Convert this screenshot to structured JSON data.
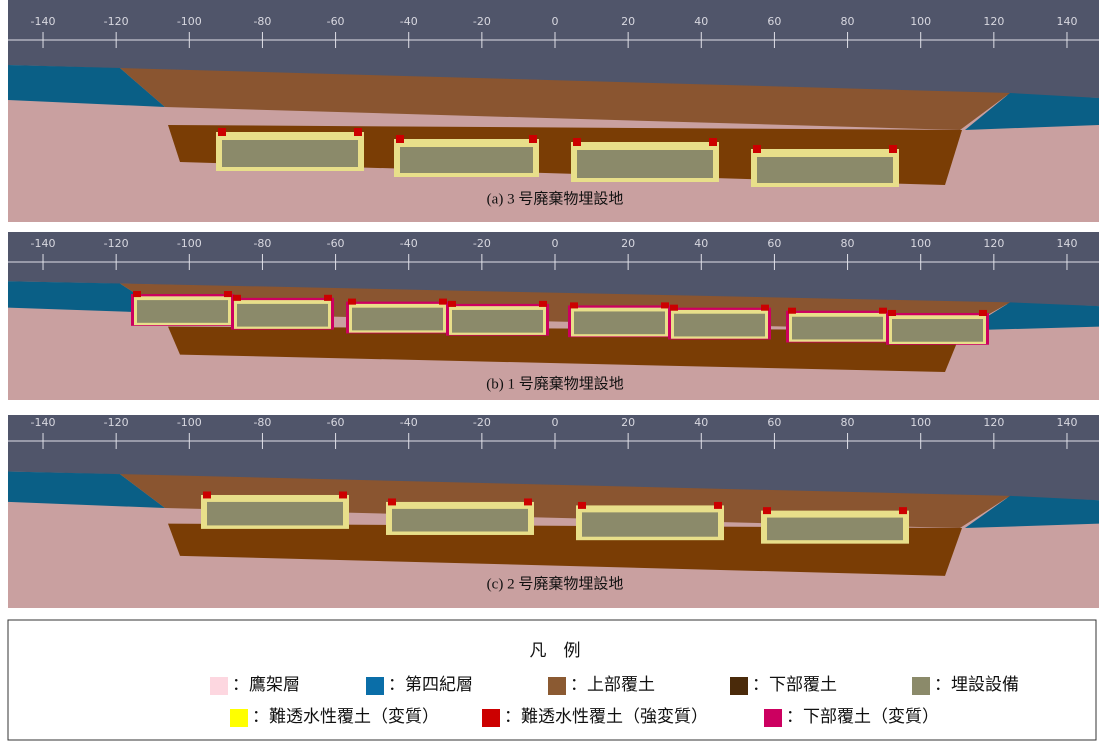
{
  "ruler_ticks": [
    -140,
    -120,
    -100,
    -80,
    -60,
    -40,
    -20,
    0,
    20,
    40,
    60,
    80,
    100,
    120,
    140
  ],
  "panels": [
    {
      "caption": "(a) 3 号廃棄物埋設地"
    },
    {
      "caption": "(b) 1 号廃棄物埋設地"
    },
    {
      "caption": "(c) 2 号廃棄物埋設地"
    }
  ],
  "legend": {
    "title": "凡　例",
    "items": [
      {
        "label": "：鷹架層",
        "color": "#fdd7e0"
      },
      {
        "label": "：第四紀層",
        "color": "#0a6ea8"
      },
      {
        "label": "：上部覆土",
        "color": "#8b5a32"
      },
      {
        "label": "：下部覆土",
        "color": "#4a2a0a"
      },
      {
        "label": "：埋設設備",
        "color": "#8b8a6a"
      },
      {
        "label": "：難透水性覆土（変質）",
        "color": "#ffff00"
      },
      {
        "label": "：難透水性覆土（強変質）",
        "color": "#cc0000"
      },
      {
        "label": "：下部覆土（変質）",
        "color": "#cc0060"
      }
    ]
  }
}
